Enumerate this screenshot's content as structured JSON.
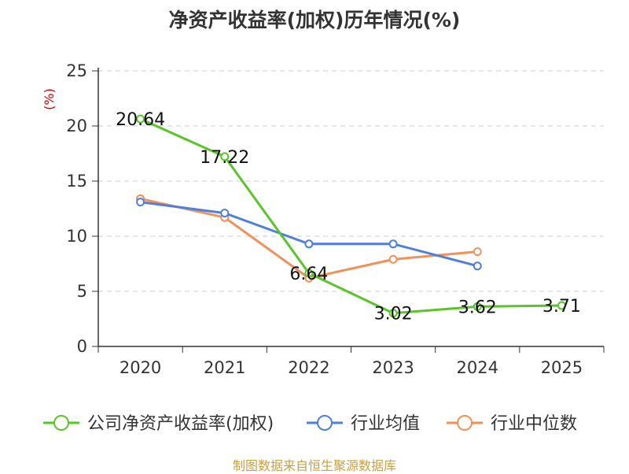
{
  "chart_data": {
    "type": "line",
    "title": "净资产收益率(加权)历年情况(%)",
    "unit_label": "(%)",
    "categories": [
      "2020",
      "2021",
      "2022",
      "2023",
      "2024",
      "2025"
    ],
    "ylim": [
      0,
      25
    ],
    "yticks": [
      0,
      5,
      10,
      15,
      20,
      25
    ],
    "grid": true,
    "legend_position": "bottom",
    "series": [
      {
        "name": "公司净资产收益率(加权)",
        "color": "#5ac42a",
        "values": [
          20.64,
          17.22,
          6.64,
          3.02,
          3.62,
          3.71
        ],
        "labels": [
          "20.64",
          "17.22",
          "6.64",
          "3.02",
          "3.62",
          "3.71"
        ]
      },
      {
        "name": "行业均值",
        "color": "#4f7fdb",
        "values": [
          13.1,
          12.1,
          9.3,
          9.3,
          7.3,
          null
        ]
      },
      {
        "name": "行业中位数",
        "color": "#f0915a",
        "values": [
          13.4,
          11.7,
          6.2,
          7.9,
          8.6,
          null
        ]
      }
    ]
  },
  "source_note": "制图数据来自恒生聚源数据库"
}
